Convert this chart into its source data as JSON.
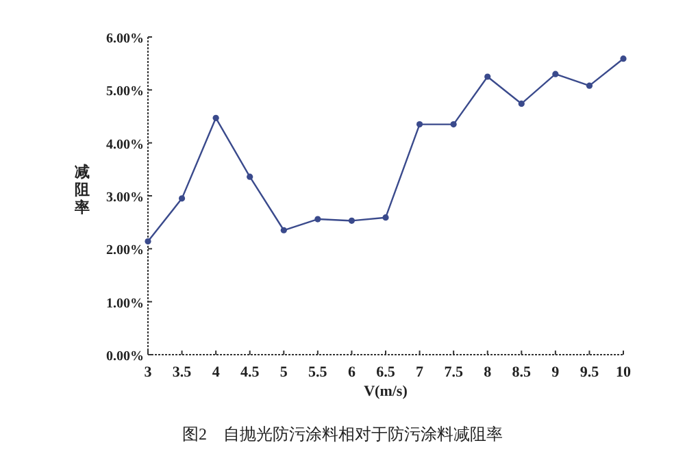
{
  "chart_data": {
    "type": "line",
    "xlabel": "V(m/s)",
    "ylabel": "减阻率",
    "annotations": [
      "图2　自抛光防污涂料相对于防污涂料减阻率"
    ],
    "x": [
      3,
      3.5,
      4,
      4.5,
      5,
      5.5,
      6,
      6.5,
      7,
      7.5,
      8,
      8.5,
      9,
      9.5,
      10
    ],
    "series": [
      {
        "color": "#3a4a8c",
        "values": [
          2.14,
          2.95,
          4.47,
          3.36,
          2.35,
          2.56,
          2.53,
          2.59,
          4.35,
          4.35,
          5.25,
          4.74,
          5.3,
          5.08,
          5.59
        ]
      }
    ],
    "xlim": [
      3,
      10
    ],
    "xticks": [
      3,
      3.5,
      4,
      4.5,
      5,
      5.5,
      6,
      6.5,
      7,
      7.5,
      8,
      8.5,
      9,
      9.5,
      10
    ],
    "ylim": [
      0,
      6
    ],
    "yticks": [
      {
        "value": 0,
        "label": "0.00%"
      },
      {
        "value": 1,
        "label": "1.00%"
      },
      {
        "value": 2,
        "label": "2.00%"
      },
      {
        "value": 3,
        "label": "3.00%"
      },
      {
        "value": 4,
        "label": "4.00%"
      },
      {
        "value": 5,
        "label": "5.00%"
      },
      {
        "value": 6,
        "label": "6.00%"
      }
    ],
    "marker": "circle",
    "line_style": "solid",
    "grid": false
  }
}
